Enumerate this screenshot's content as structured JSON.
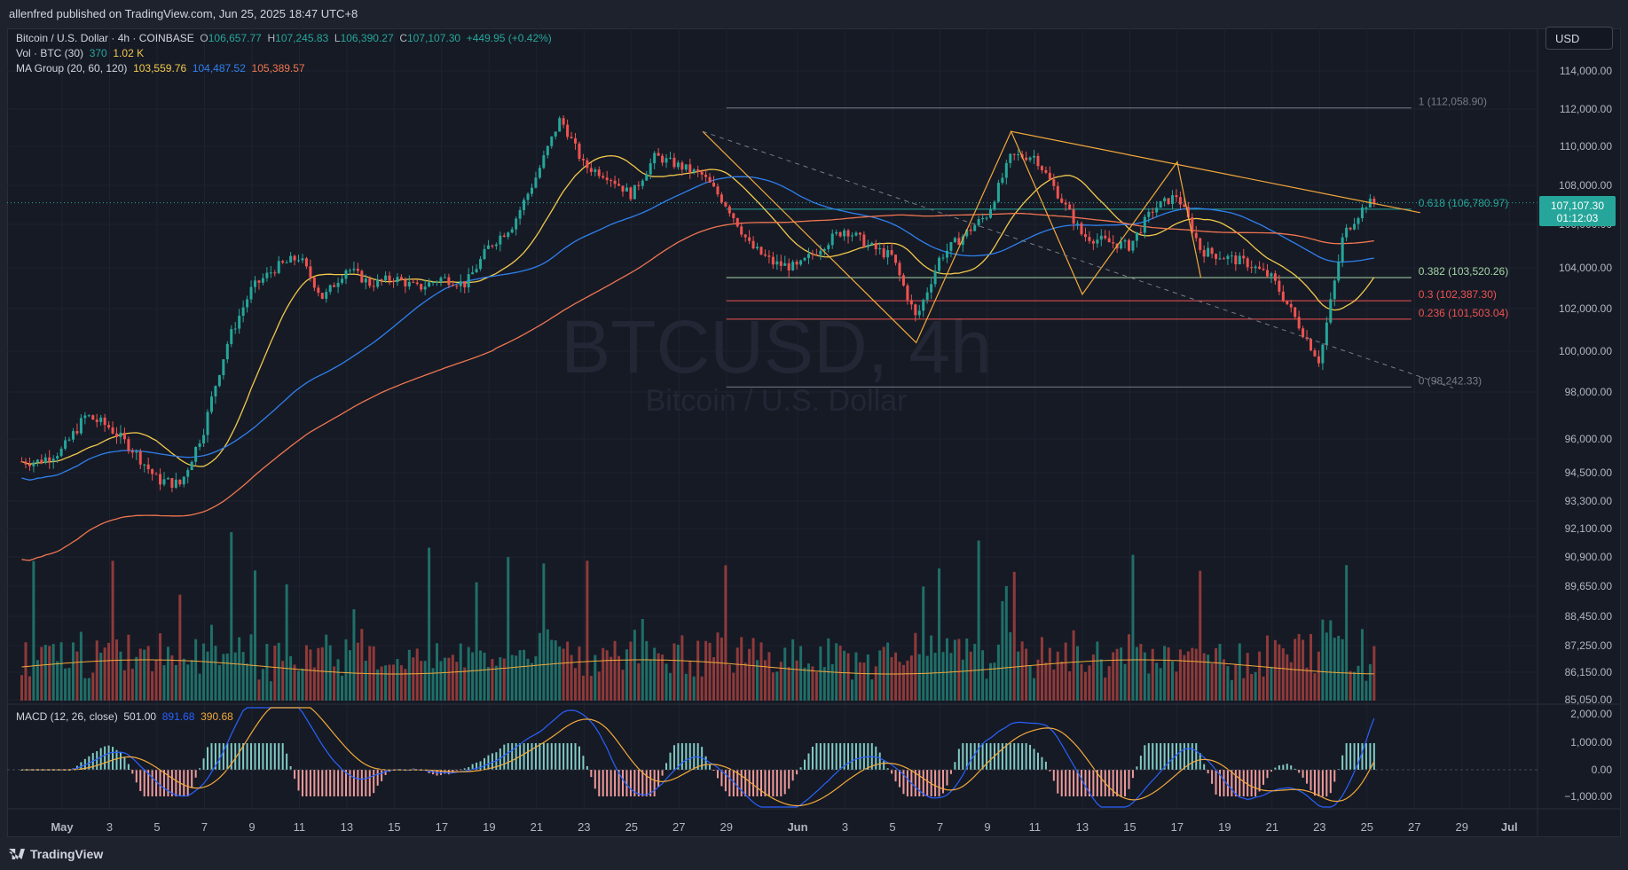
{
  "header": {
    "published": "allenfred published on TradingView.com, Jun 25, 2025 18:47 UTC+8"
  },
  "currency_button": "USD",
  "legend": {
    "symbol": "Bitcoin / U.S. Dollar · 4h · COINBASE",
    "o_label": "O",
    "o_value": "106,657.77",
    "h_label": "H",
    "h_value": "107,245.83",
    "l_label": "L",
    "l_value": "106,390.27",
    "c_label": "C",
    "c_value": "107,107.30",
    "change": "+449.95 (+0.42%)",
    "vol_label": "Vol · BTC (30)",
    "vol_value1": "370",
    "vol_value2": "1.02 K",
    "ma_label": "MA Group (20, 60, 120)",
    "ma20": "103,559.76",
    "ma60": "104,487.52",
    "ma120": "105,389.57"
  },
  "watermark": {
    "symbol": "BTCUSD, 4h",
    "name": "Bitcoin / U.S. Dollar"
  },
  "macd_legend": {
    "label": "MACD (12, 26, close)",
    "v1": "501.00",
    "v2": "891.68",
    "v3": "390.68"
  },
  "footer": {
    "brand": "TradingView"
  },
  "colors": {
    "up": "#26a69a",
    "down": "#ef5350",
    "ma20": "#f2c94c",
    "ma60": "#2f80ed",
    "ma120": "#f07650",
    "drawing": "#f2a93b"
  },
  "chart_data": {
    "type": "candlestick",
    "timeframe": "4h",
    "y_axis_ticks": [
      "114,000.00",
      "112,000.00",
      "110,000.00",
      "108,000.00",
      "106,000.00",
      "104,000.00",
      "102,000.00",
      "100,000.00",
      "98,000.00",
      "96,000.00",
      "94,500.00",
      "93,300.00",
      "92,100.00",
      "90,900.00",
      "89,650.00",
      "88,450.00",
      "87,250.00",
      "86,150.00",
      "85,050.00"
    ],
    "x_axis_ticks": [
      "May",
      "3",
      "5",
      "7",
      "9",
      "11",
      "13",
      "15",
      "17",
      "19",
      "21",
      "23",
      "25",
      "27",
      "29",
      "Jun",
      "3",
      "5",
      "7",
      "9",
      "11",
      "13",
      "15",
      "17",
      "19",
      "21",
      "23",
      "25",
      "27",
      "29",
      "Jul"
    ],
    "price_label": {
      "value": "107,107.30",
      "countdown": "01:12:03"
    },
    "fibonacci": [
      {
        "level": "1 (112,058.90)",
        "price": 112058.9
      },
      {
        "level": "0.618 (106,780.97)",
        "price": 106780.97
      },
      {
        "level": "0.382 (103,520.26)",
        "price": 103520.26
      },
      {
        "level": "0.3 (102,387.30)",
        "price": 102387.3
      },
      {
        "level": "0.236 (101,503.04)",
        "price": 101503.04
      },
      {
        "level": "0 (98,242.33)",
        "price": 98242.33
      }
    ],
    "macd_ticks": [
      "2,000.00",
      "1,000.00",
      "0.00",
      "−1,000.00"
    ],
    "price_path": [
      {
        "x": "Apr 30",
        "y": 95000
      },
      {
        "x": "May 1",
        "y": 95500
      },
      {
        "x": "May 2",
        "y": 97000
      },
      {
        "x": "May 3",
        "y": 96500
      },
      {
        "x": "May 4",
        "y": 95500
      },
      {
        "x": "May 5",
        "y": 94200
      },
      {
        "x": "May 6",
        "y": 94000
      },
      {
        "x": "May 7",
        "y": 96500
      },
      {
        "x": "May 8",
        "y": 100500
      },
      {
        "x": "May 9",
        "y": 103000
      },
      {
        "x": "May 10",
        "y": 104000
      },
      {
        "x": "May 11",
        "y": 104500
      },
      {
        "x": "May 12",
        "y": 102500
      },
      {
        "x": "May 13",
        "y": 104000
      },
      {
        "x": "May 14",
        "y": 103200
      },
      {
        "x": "May 15",
        "y": 103500
      },
      {
        "x": "May 16",
        "y": 103000
      },
      {
        "x": "May 17",
        "y": 103500
      },
      {
        "x": "May 18",
        "y": 103200
      },
      {
        "x": "May 19",
        "y": 105000
      },
      {
        "x": "May 20",
        "y": 106000
      },
      {
        "x": "May 21",
        "y": 108500
      },
      {
        "x": "May 22",
        "y": 111500
      },
      {
        "x": "May 23",
        "y": 109000
      },
      {
        "x": "May 24",
        "y": 108500
      },
      {
        "x": "May 25",
        "y": 107500
      },
      {
        "x": "May 26",
        "y": 109500
      },
      {
        "x": "May 27",
        "y": 109000
      },
      {
        "x": "May 28",
        "y": 108500
      },
      {
        "x": "May 29",
        "y": 107000
      },
      {
        "x": "May 30",
        "y": 105000
      },
      {
        "x": "May 31",
        "y": 104200
      },
      {
        "x": "Jun 1",
        "y": 104000
      },
      {
        "x": "Jun 2",
        "y": 105000
      },
      {
        "x": "Jun 3",
        "y": 105800
      },
      {
        "x": "Jun 4",
        "y": 105000
      },
      {
        "x": "Jun 5",
        "y": 104500
      },
      {
        "x": "Jun 6",
        "y": 101500
      },
      {
        "x": "Jun 7",
        "y": 104500
      },
      {
        "x": "Jun 8",
        "y": 105500
      },
      {
        "x": "Jun 9",
        "y": 106500
      },
      {
        "x": "Jun 10",
        "y": 109500
      },
      {
        "x": "Jun 11",
        "y": 109500
      },
      {
        "x": "Jun 12",
        "y": 107500
      },
      {
        "x": "Jun 13",
        "y": 105500
      },
      {
        "x": "Jun 14",
        "y": 105200
      },
      {
        "x": "Jun 15",
        "y": 105000
      },
      {
        "x": "Jun 16",
        "y": 106800
      },
      {
        "x": "Jun 17",
        "y": 107500
      },
      {
        "x": "Jun 18",
        "y": 104800
      },
      {
        "x": "Jun 19",
        "y": 104500
      },
      {
        "x": "Jun 20",
        "y": 104200
      },
      {
        "x": "Jun 21",
        "y": 103500
      },
      {
        "x": "Jun 22",
        "y": 101500
      },
      {
        "x": "Jun 23",
        "y": 99500
      },
      {
        "x": "Jun 24",
        "y": 105500
      },
      {
        "x": "Jun 25",
        "y": 107100
      }
    ]
  }
}
